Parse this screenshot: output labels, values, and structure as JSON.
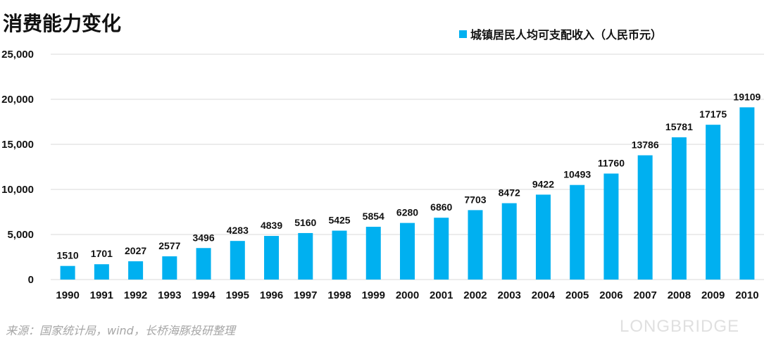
{
  "chart_data": {
    "type": "bar",
    "title": "消费能力变化",
    "categories": [
      "1990",
      "1991",
      "1992",
      "1993",
      "1994",
      "1995",
      "1996",
      "1997",
      "1998",
      "1999",
      "2000",
      "2001",
      "2002",
      "2003",
      "2004",
      "2005",
      "2006",
      "2007",
      "2008",
      "2009",
      "2010"
    ],
    "series": [
      {
        "name": "城镇居民人均可支配收入（人民币元）",
        "values": [
          1510,
          1701,
          2027,
          2577,
          3496,
          4283,
          4839,
          5160,
          5425,
          5854,
          6280,
          6860,
          7703,
          8472,
          9422,
          10493,
          11760,
          13786,
          15781,
          17175,
          19109
        ],
        "color": "#00b0f0"
      }
    ],
    "ylim": [
      0,
      25000
    ],
    "yticks": [
      "0",
      "5,000",
      "10,000",
      "15,000",
      "20,000",
      "25,000"
    ],
    "xlabel": "",
    "ylabel": "",
    "grid": true,
    "legend": "top-right"
  },
  "source": "来源：国家统计局，wind，长桥海豚投研整理",
  "watermark": "LONGBRIDGE"
}
